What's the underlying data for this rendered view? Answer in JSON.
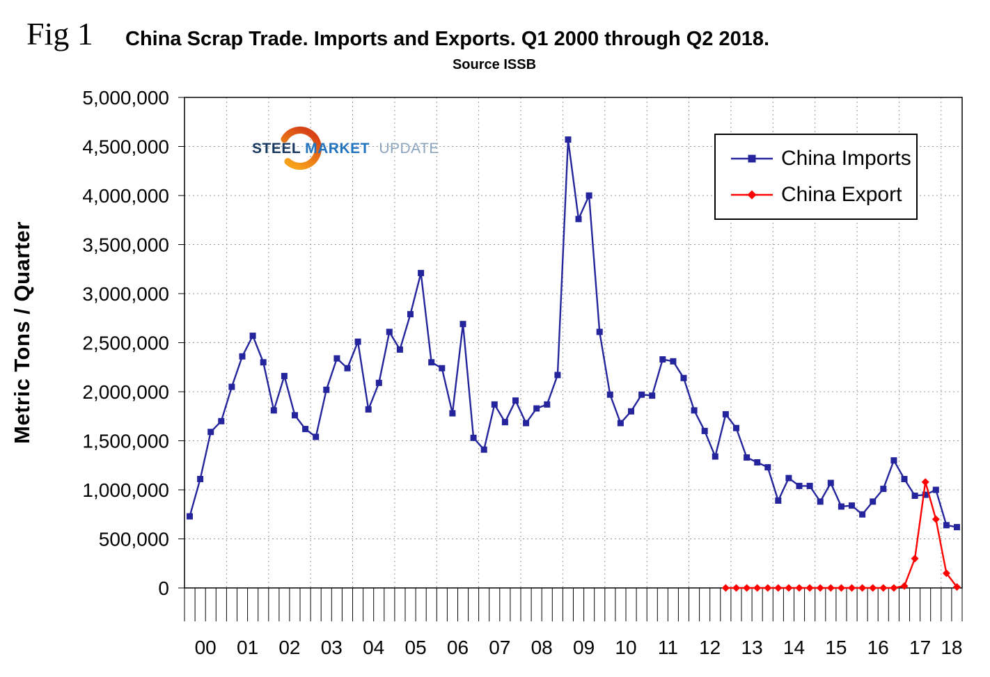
{
  "fig_label": "Fig 1",
  "logo": {
    "word1": "STEEL",
    "word2": "MARKET",
    "word3": "UPDATE",
    "swoosh_color_top": "#F7A11A",
    "swoosh_color_bottom": "#D84315"
  },
  "chart_data": {
    "type": "line",
    "title": "China Scrap Trade. Imports and Exports. Q1 2000 through Q2 2018.",
    "source": "Source ISSB",
    "ylabel": "Metric Tons / Quarter",
    "xlabel": "",
    "ylim": [
      0,
      5000000
    ],
    "ytick_step": 500000,
    "grid": "dashed",
    "legend_position": "top-right",
    "x_tick_unit": "quarter",
    "year_labels": [
      "00",
      "01",
      "02",
      "03",
      "04",
      "05",
      "06",
      "07",
      "08",
      "09",
      "10",
      "11",
      "12",
      "13",
      "14",
      "15",
      "16",
      "17",
      "18"
    ],
    "quarters_per_year": [
      4,
      4,
      4,
      4,
      4,
      4,
      4,
      4,
      4,
      4,
      4,
      4,
      4,
      4,
      4,
      4,
      4,
      4,
      2
    ],
    "series": [
      {
        "name": "China Imports",
        "color": "#24249C",
        "marker": "square",
        "start_index": 0,
        "values": [
          730000,
          1110000,
          1590000,
          1700000,
          2050000,
          2360000,
          2570000,
          2300000,
          1810000,
          2160000,
          1760000,
          1620000,
          1540000,
          2020000,
          2340000,
          2240000,
          2510000,
          1820000,
          2090000,
          2610000,
          2430000,
          2790000,
          3210000,
          2300000,
          2240000,
          1780000,
          2690000,
          1530000,
          1410000,
          1870000,
          1690000,
          1910000,
          1680000,
          1830000,
          1870000,
          2170000,
          4570000,
          3760000,
          4000000,
          2610000,
          1970000,
          1680000,
          1800000,
          1970000,
          1960000,
          2330000,
          2310000,
          2140000,
          1810000,
          1600000,
          1340000,
          1770000,
          1630000,
          1330000,
          1280000,
          1230000,
          890000,
          1120000,
          1040000,
          1040000,
          880000,
          1070000,
          830000,
          840000,
          750000,
          880000,
          1010000,
          1300000,
          1110000,
          940000,
          950000,
          1000000,
          640000,
          620000
        ]
      },
      {
        "name": "China Export",
        "color": "#FF0000",
        "marker": "diamond",
        "start_index": 51,
        "values": [
          0,
          0,
          0,
          0,
          0,
          0,
          0,
          0,
          0,
          0,
          0,
          0,
          0,
          0,
          0,
          0,
          0,
          20000,
          300000,
          1080000,
          700000,
          150000,
          10000
        ]
      }
    ]
  }
}
